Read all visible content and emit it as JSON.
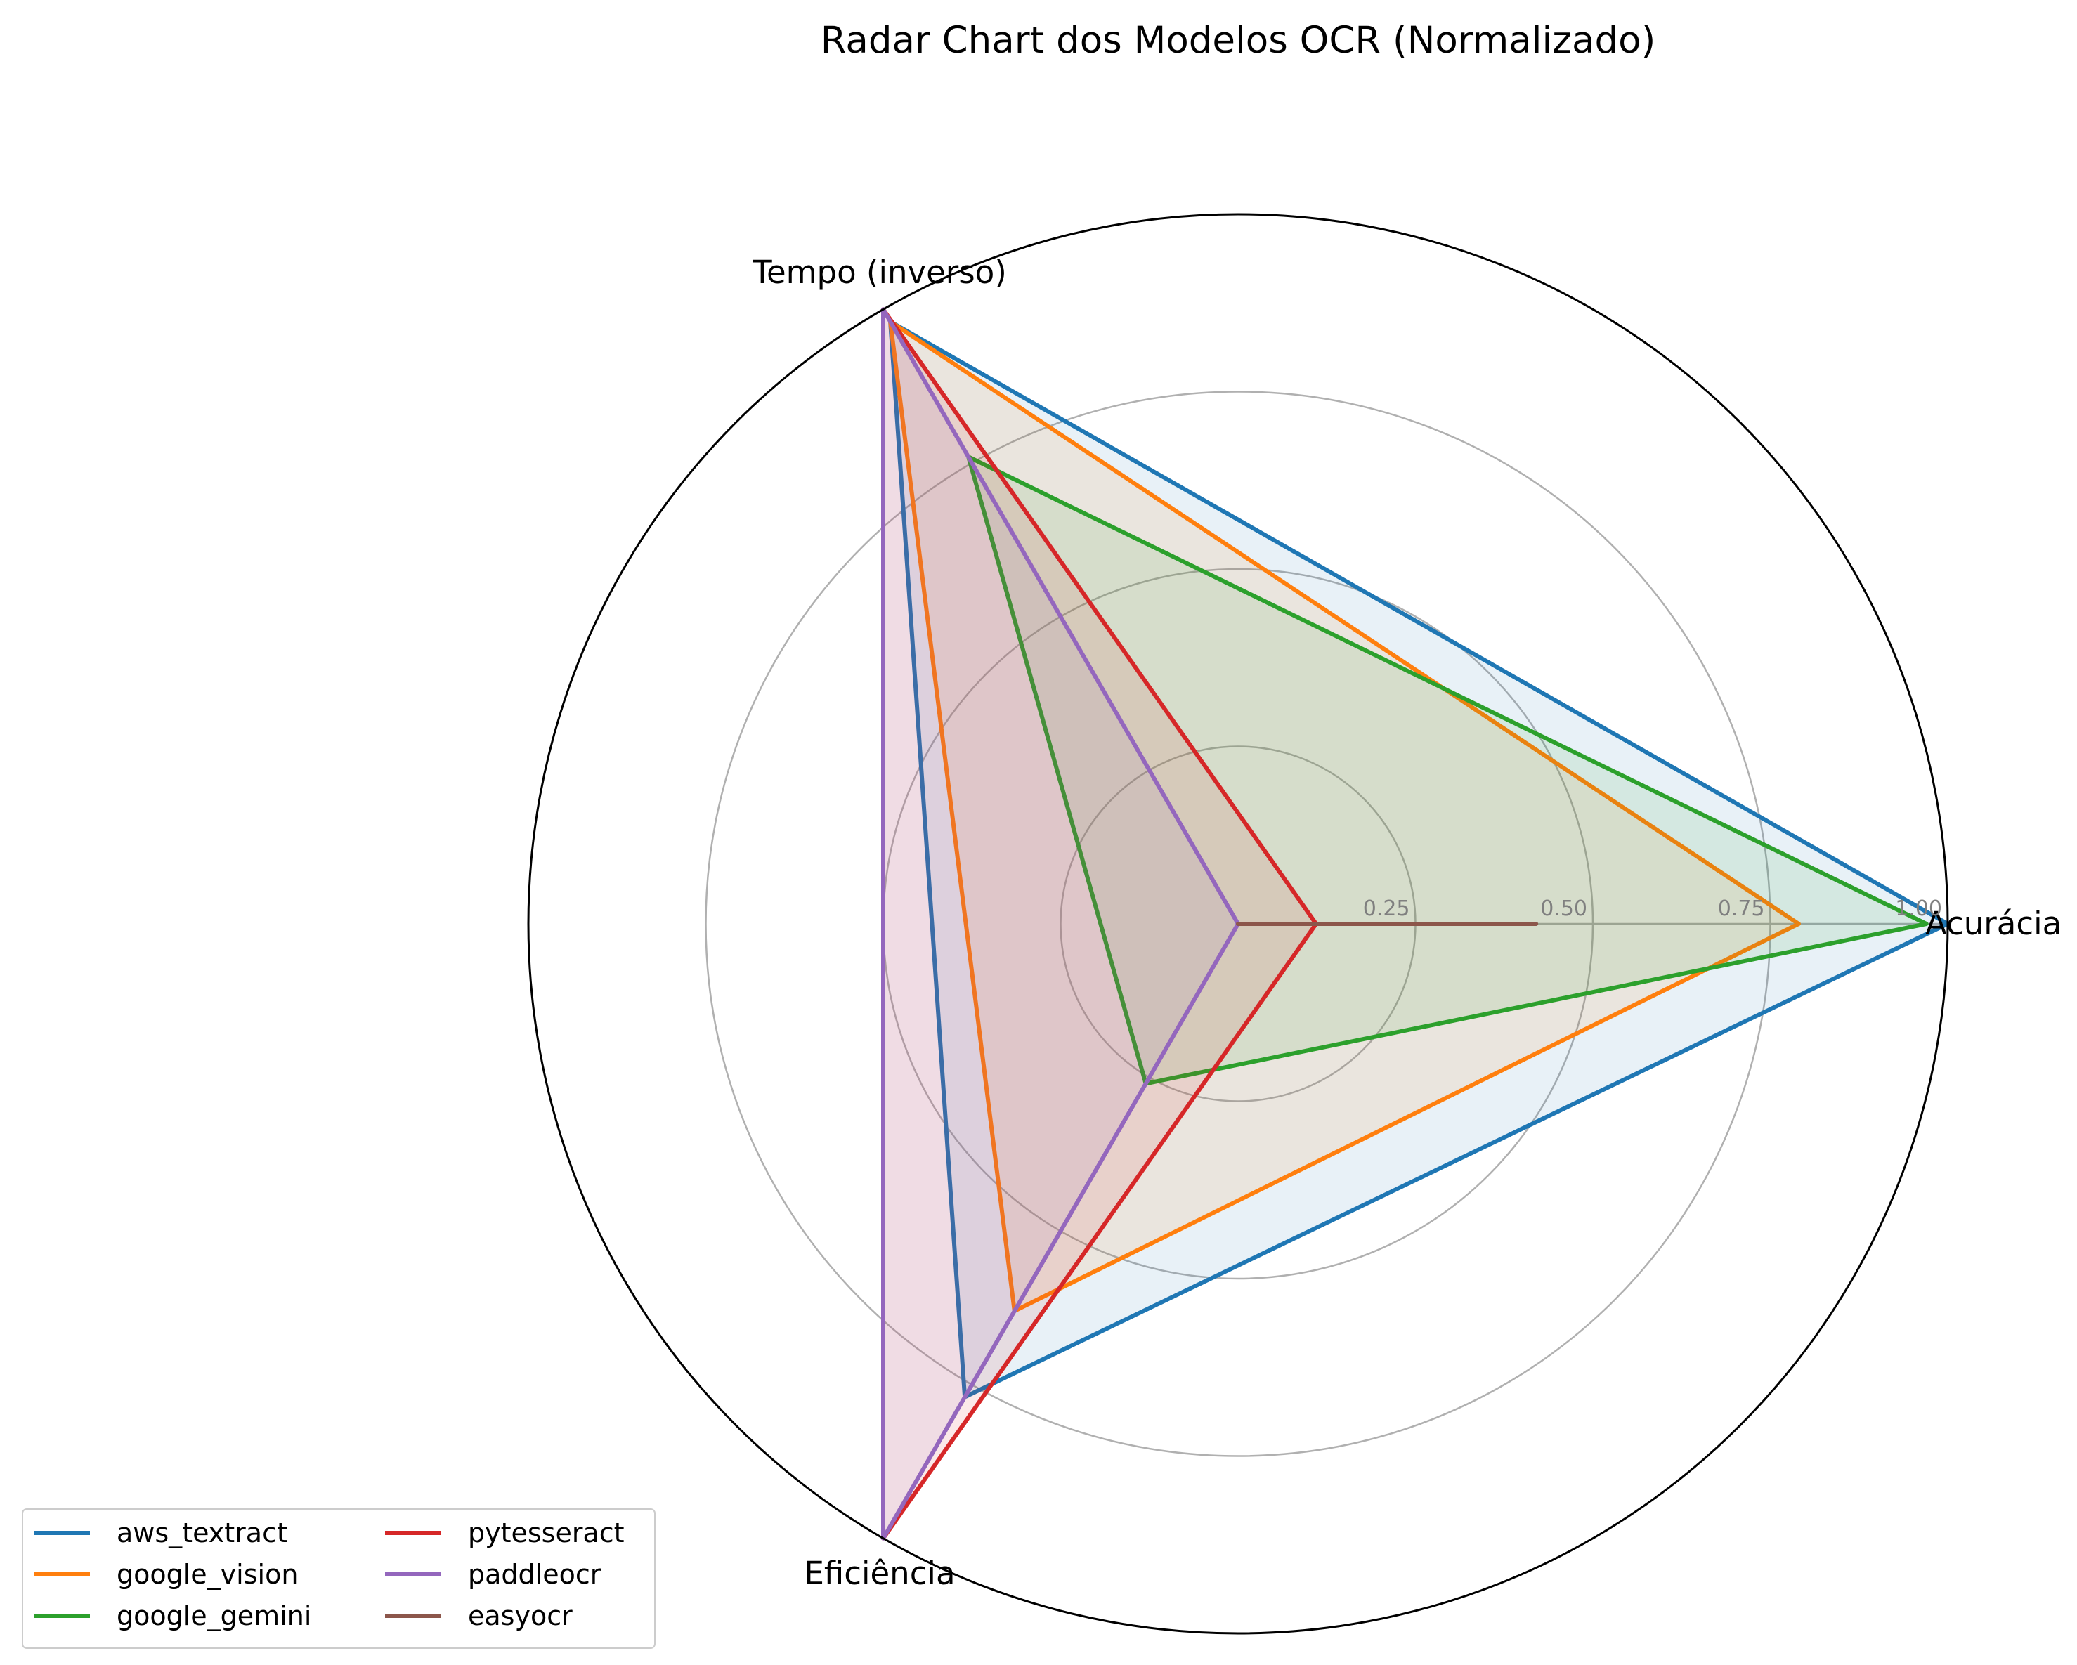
{
  "chart_data": {
    "type": "radar",
    "title": "Radar Chart dos Modelos OCR (Normalizado)",
    "axes": [
      "Acurácia",
      "Tempo (inverso)",
      "Eficiência"
    ],
    "radial_ticks": [
      "0.25",
      "0.50",
      "0.75",
      "1.00"
    ],
    "radial_tick_values": [
      0.25,
      0.5,
      0.75,
      1.0
    ],
    "rlim": [
      0,
      1
    ],
    "grid": true,
    "legend_placement": "bottom-left",
    "series": [
      {
        "name": "aws_textract",
        "color": "#1f77b4",
        "values": [
          1.0,
          0.98,
          0.77
        ]
      },
      {
        "name": "google_vision",
        "color": "#ff7f0e",
        "values": [
          0.79,
          0.98,
          0.63
        ]
      },
      {
        "name": "google_gemini",
        "color": "#2ca02c",
        "values": [
          0.97,
          0.76,
          0.26
        ]
      },
      {
        "name": "pytesseract",
        "color": "#d62728",
        "values": [
          0.11,
          1.0,
          1.0
        ]
      },
      {
        "name": "paddleocr",
        "color": "#9467bd",
        "values": [
          0.0,
          1.0,
          1.0
        ]
      },
      {
        "name": "easyocr",
        "color": "#8c564b",
        "values": [
          0.42,
          0.0,
          0.0
        ]
      }
    ]
  }
}
